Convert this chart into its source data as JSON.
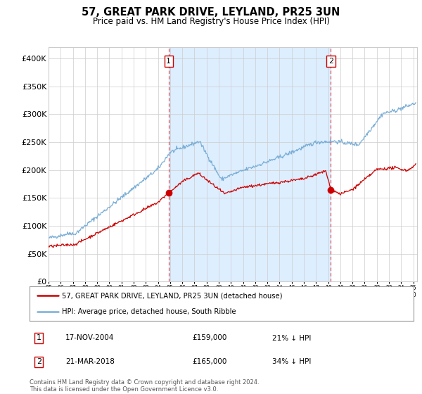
{
  "title": "57, GREAT PARK DRIVE, LEYLAND, PR25 3UN",
  "subtitle": "Price paid vs. HM Land Registry's House Price Index (HPI)",
  "legend_line1": "57, GREAT PARK DRIVE, LEYLAND, PR25 3UN (detached house)",
  "legend_line2": "HPI: Average price, detached house, South Ribble",
  "annotation1_date": "17-NOV-2004",
  "annotation1_price": "£159,000",
  "annotation1_hpi": "21% ↓ HPI",
  "annotation2_date": "21-MAR-2018",
  "annotation2_price": "£165,000",
  "annotation2_hpi": "34% ↓ HPI",
  "footer": "Contains HM Land Registry data © Crown copyright and database right 2024.\nThis data is licensed under the Open Government Licence v3.0.",
  "hpi_color": "#7aaed6",
  "price_color": "#cc0000",
  "marker_color": "#cc0000",
  "annotation_box_color": "#cc0000",
  "shaded_region_color": "#ddeeff",
  "dashed_line_color": "#dd4444",
  "grid_color": "#cccccc",
  "background_color": "#ffffff",
  "ylim": [
    0,
    420000
  ],
  "yticks": [
    0,
    50000,
    100000,
    150000,
    200000,
    250000,
    300000,
    350000,
    400000
  ],
  "ytick_labels": [
    "£0",
    "£50K",
    "£100K",
    "£150K",
    "£200K",
    "£250K",
    "£300K",
    "£350K",
    "£400K"
  ],
  "sale1_year": 2004.88,
  "sale1_value": 159000,
  "sale2_year": 2018.22,
  "sale2_value": 165000,
  "xmin": 1995,
  "xmax": 2025.3
}
